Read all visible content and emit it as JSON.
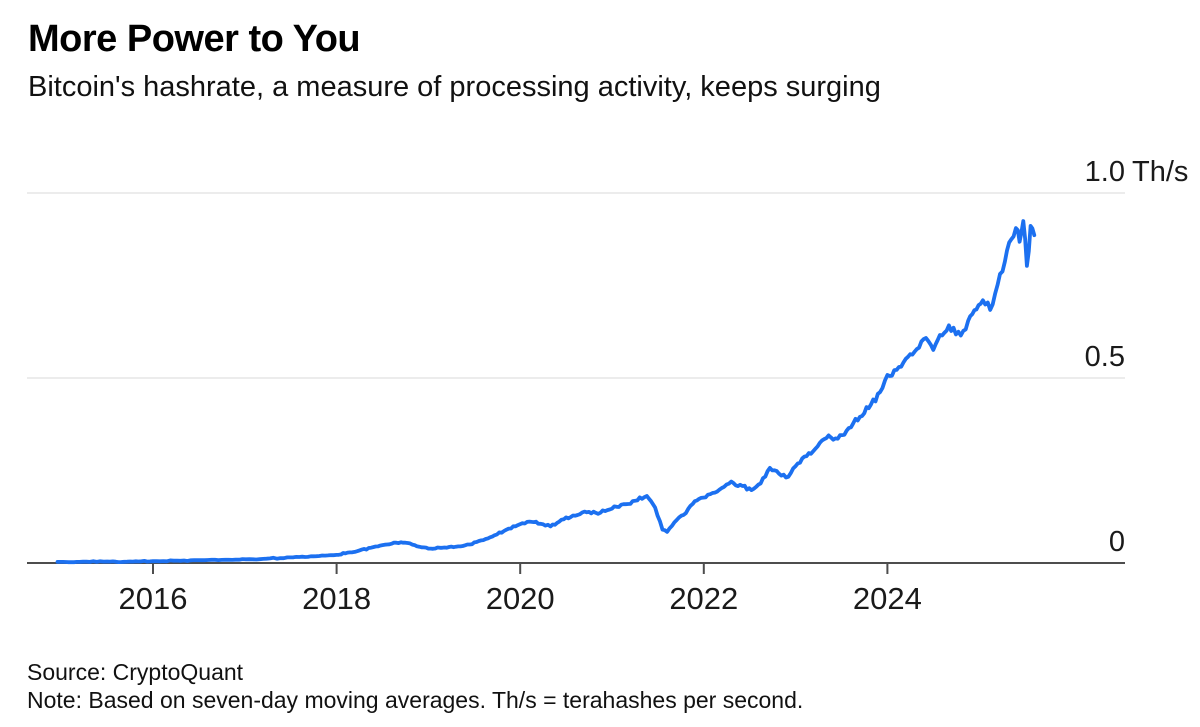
{
  "header": {
    "title": "More Power to You",
    "subtitle": "Bitcoin's hashrate, a measure of processing activity, keeps surging"
  },
  "footer": {
    "source": "Source: CryptoQuant",
    "note": "Note: Based on seven-day moving averages. Th/s = terahashes per second."
  },
  "chart_data": {
    "type": "line",
    "title": "More Power to You",
    "subtitle": "Bitcoin's hashrate, a measure of processing activity, keeps surging",
    "ylabel_unit": "Th/s",
    "xlabel": "",
    "xlim": [
      2014.95,
      2025.75
    ],
    "ylim": [
      0,
      1.0
    ],
    "grid": "horizontal",
    "legend": "none",
    "colors": {
      "line": "#1c70f0",
      "gridline": "#e6e6e6",
      "axis": "#4d4d4d",
      "text": "#1a1a1a"
    },
    "x_ticks": [
      {
        "year": 2016,
        "label": "2016"
      },
      {
        "year": 2018,
        "label": "2018"
      },
      {
        "year": 2020,
        "label": "2020"
      },
      {
        "year": 2022,
        "label": "2022"
      },
      {
        "year": 2024,
        "label": "2024"
      }
    ],
    "y_ticks": [
      {
        "value": 0,
        "label": "0",
        "unit": ""
      },
      {
        "value": 0.5,
        "label": "0.5",
        "unit": ""
      },
      {
        "value": 1.0,
        "label": "1.0",
        "unit": "Th/s"
      }
    ],
    "noise": {
      "base": 0.0015,
      "factor": 0.02,
      "seed": 20250815
    },
    "series": [
      {
        "name": "Bitcoin hashrate, seven-day moving average (Th/s)",
        "color": "#1c70f0",
        "points": [
          [
            2014.96,
            0.003
          ],
          [
            2015.2,
            0.003
          ],
          [
            2015.5,
            0.004
          ],
          [
            2015.75,
            0.004
          ],
          [
            2016.0,
            0.005
          ],
          [
            2016.3,
            0.006
          ],
          [
            2016.6,
            0.008
          ],
          [
            2016.9,
            0.009
          ],
          [
            2017.2,
            0.011
          ],
          [
            2017.5,
            0.015
          ],
          [
            2017.75,
            0.018
          ],
          [
            2018.0,
            0.022
          ],
          [
            2018.12,
            0.028
          ],
          [
            2018.25,
            0.034
          ],
          [
            2018.4,
            0.043
          ],
          [
            2018.55,
            0.05
          ],
          [
            2018.7,
            0.056
          ],
          [
            2018.8,
            0.053
          ],
          [
            2018.9,
            0.044
          ],
          [
            2019.0,
            0.039
          ],
          [
            2019.15,
            0.041
          ],
          [
            2019.3,
            0.044
          ],
          [
            2019.45,
            0.05
          ],
          [
            2019.6,
            0.062
          ],
          [
            2019.72,
            0.075
          ],
          [
            2019.85,
            0.09
          ],
          [
            2020.0,
            0.105
          ],
          [
            2020.1,
            0.112
          ],
          [
            2020.22,
            0.106
          ],
          [
            2020.33,
            0.099
          ],
          [
            2020.45,
            0.117
          ],
          [
            2020.55,
            0.124
          ],
          [
            2020.65,
            0.132
          ],
          [
            2020.75,
            0.138
          ],
          [
            2020.85,
            0.133
          ],
          [
            2020.95,
            0.143
          ],
          [
            2021.05,
            0.152
          ],
          [
            2021.15,
            0.159
          ],
          [
            2021.25,
            0.168
          ],
          [
            2021.38,
            0.181
          ],
          [
            2021.47,
            0.15
          ],
          [
            2021.55,
            0.09
          ],
          [
            2021.6,
            0.084
          ],
          [
            2021.68,
            0.11
          ],
          [
            2021.78,
            0.13
          ],
          [
            2021.88,
            0.16
          ],
          [
            2021.97,
            0.176
          ],
          [
            2022.07,
            0.186
          ],
          [
            2022.17,
            0.198
          ],
          [
            2022.3,
            0.22
          ],
          [
            2022.42,
            0.208
          ],
          [
            2022.52,
            0.197
          ],
          [
            2022.62,
            0.215
          ],
          [
            2022.72,
            0.257
          ],
          [
            2022.82,
            0.241
          ],
          [
            2022.92,
            0.233
          ],
          [
            2023.0,
            0.262
          ],
          [
            2023.12,
            0.289
          ],
          [
            2023.24,
            0.315
          ],
          [
            2023.36,
            0.345
          ],
          [
            2023.46,
            0.336
          ],
          [
            2023.58,
            0.365
          ],
          [
            2023.7,
            0.395
          ],
          [
            2023.82,
            0.428
          ],
          [
            2023.92,
            0.462
          ],
          [
            2024.0,
            0.508
          ],
          [
            2024.1,
            0.522
          ],
          [
            2024.2,
            0.552
          ],
          [
            2024.32,
            0.578
          ],
          [
            2024.42,
            0.608
          ],
          [
            2024.5,
            0.576
          ],
          [
            2024.62,
            0.622
          ],
          [
            2024.72,
            0.636
          ],
          [
            2024.8,
            0.615
          ],
          [
            2024.88,
            0.655
          ],
          [
            2024.97,
            0.685
          ],
          [
            2025.04,
            0.71
          ],
          [
            2025.12,
            0.684
          ],
          [
            2025.2,
            0.752
          ],
          [
            2025.28,
            0.815
          ],
          [
            2025.35,
            0.875
          ],
          [
            2025.4,
            0.905
          ],
          [
            2025.44,
            0.868
          ],
          [
            2025.48,
            0.924
          ],
          [
            2025.52,
            0.803
          ],
          [
            2025.56,
            0.911
          ],
          [
            2025.6,
            0.886
          ]
        ]
      }
    ]
  }
}
